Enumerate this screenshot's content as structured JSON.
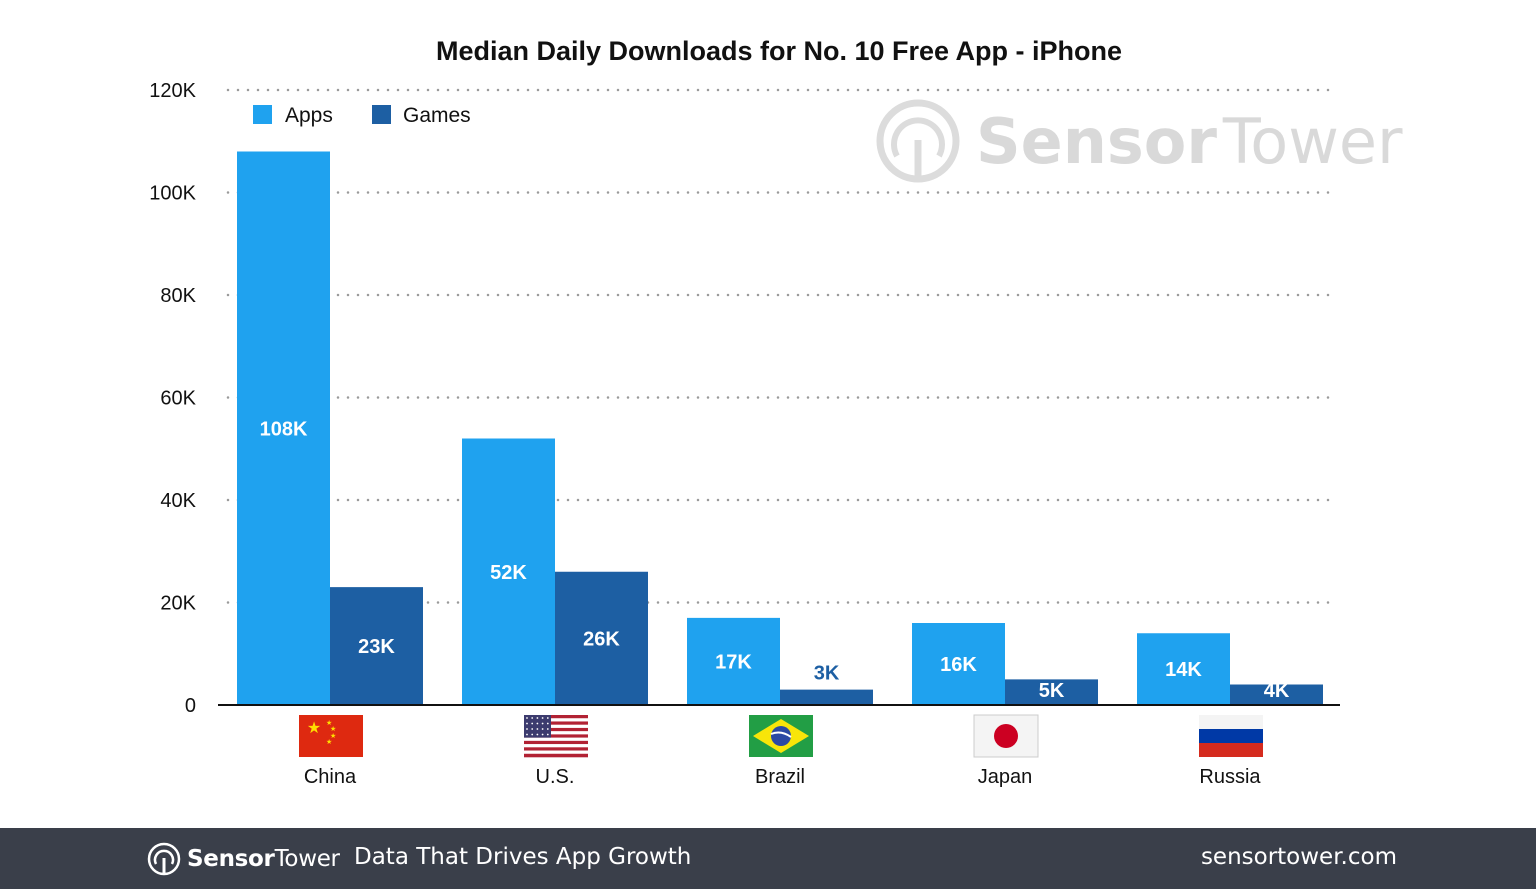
{
  "chart_data": {
    "type": "bar",
    "title": "Median Daily Downloads for No. 10 Free App - iPhone",
    "categories": [
      "China",
      "U.S.",
      "Brazil",
      "Japan",
      "Russia"
    ],
    "series": [
      {
        "name": "Apps",
        "color": "#1fa2ef",
        "values": [
          108000,
          52000,
          17000,
          16000,
          14000
        ],
        "labels": [
          "108K",
          "52K",
          "17K",
          "16K",
          "14K"
        ],
        "label_color": "#ffffff"
      },
      {
        "name": "Games",
        "color": "#1d5fa3",
        "values": [
          23000,
          26000,
          3000,
          5000,
          4000
        ],
        "labels": [
          "23K",
          "26K",
          "3K",
          "5K",
          "4K"
        ],
        "label_color": "#ffffff",
        "label_color_outside": "#1d5fa3"
      }
    ],
    "yticks": [
      0,
      20000,
      40000,
      60000,
      80000,
      100000,
      120000
    ],
    "ytick_labels": [
      "0",
      "20K",
      "40K",
      "60K",
      "80K",
      "100K",
      "120K"
    ],
    "ylim": [
      0,
      120000
    ],
    "grid": true,
    "legend": "top-left",
    "xlabel": "",
    "ylabel": ""
  },
  "flags": [
    "china-flag",
    "us-flag",
    "brazil-flag",
    "japan-flag",
    "russia-flag"
  ],
  "watermark": {
    "sensor": "Sensor",
    "tower": "Tower"
  },
  "footer": {
    "brand_sensor": "Sensor",
    "brand_tower": "Tower",
    "tagline": "Data That Drives App Growth",
    "site": "sensortower.com",
    "background": "#3a3f4a"
  }
}
